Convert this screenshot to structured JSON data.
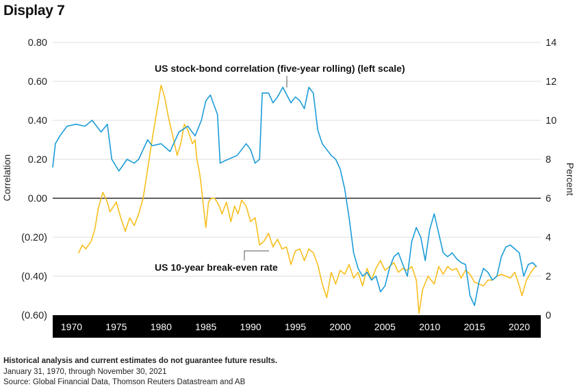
{
  "display_title": "Display 7",
  "footnotes": {
    "disclaimer": "Historical analysis and current estimates do not guarantee future results.",
    "date_range": "January 31, 1970, through November 30, 2021",
    "source": "Source: Global Financial Data, Thomson Reuters Datastream and AB"
  },
  "colors": {
    "correlation": "#1A9BD7",
    "breakeven": "#F7BE1C",
    "zero_line": "#000000",
    "axis_bar": "#000000"
  },
  "chart_data": {
    "type": "line",
    "title": "",
    "ylabel": "Correlation",
    "y2label": "Percent",
    "left_ylim": [
      -0.6,
      0.8
    ],
    "right_ylim": [
      0,
      14
    ],
    "left_tick_labels": [
      "0.80",
      "0.60",
      "0.40",
      "0.20",
      "0.00",
      "(0.20)",
      "(0.40)",
      "(0.60)"
    ],
    "right_tick_labels": [
      "14",
      "12",
      "10",
      "8",
      "6",
      "4",
      "2",
      "0"
    ],
    "x_tick_labels": [
      "1970",
      "1975",
      "1980",
      "1985",
      "1990",
      "1995",
      "2000",
      "2005",
      "2010",
      "2015",
      "2020"
    ],
    "grid": true,
    "annotations": {
      "correlation": "US stock-bond correlation (five-year rolling) (left scale)",
      "breakeven": "US 10-year break-even rate"
    },
    "series": [
      {
        "name": "US stock-bond correlation (five-year rolling) (left scale)",
        "axis": "left",
        "x": [
          1967.9,
          1968.2,
          1968.7,
          1969.5,
          1970.5,
          1971.5,
          1972.3,
          1973.3,
          1974.0,
          1974.5,
          1975.3,
          1976.2,
          1977.0,
          1977.5,
          1978.0,
          1978.5,
          1979.0,
          1980.0,
          1981.0,
          1982.0,
          1983.0,
          1983.8,
          1984.5,
          1985.0,
          1985.5,
          1986.3,
          1986.6,
          1987.0,
          1988.5,
          1989.5,
          1990.0,
          1990.5,
          1991.0,
          1991.3,
          1992.0,
          1992.5,
          1993.0,
          1993.6,
          1994.5,
          1995.0,
          1995.5,
          1996.0,
          1996.5,
          1997.0,
          1997.5,
          1998.0,
          1998.5,
          1999.0,
          1999.5,
          2000.0,
          2000.5,
          2001.0,
          2001.5,
          2002.0,
          2002.5,
          2003.0,
          2003.5,
          2004.0,
          2004.5,
          2005.0,
          2005.5,
          2006.0,
          2006.5,
          2007.0,
          2007.5,
          2008.0,
          2008.5,
          2009.0,
          2009.5,
          2010.0,
          2010.5,
          2011.0,
          2011.5,
          2012.0,
          2012.5,
          2013.0,
          2013.5,
          2014.0,
          2014.5,
          2015.0,
          2015.5,
          2016.0,
          2016.5,
          2017.0,
          2017.5,
          2018.0,
          2018.5,
          2019.0,
          2019.5,
          2020.0,
          2020.5,
          2021.0,
          2021.5,
          2021.9
        ],
        "values": [
          0.16,
          0.28,
          0.32,
          0.37,
          0.38,
          0.37,
          0.4,
          0.34,
          0.38,
          0.2,
          0.14,
          0.2,
          0.18,
          0.2,
          0.25,
          0.3,
          0.27,
          0.28,
          0.24,
          0.34,
          0.37,
          0.32,
          0.4,
          0.5,
          0.53,
          0.43,
          0.18,
          0.19,
          0.22,
          0.28,
          0.25,
          0.18,
          0.2,
          0.54,
          0.54,
          0.49,
          0.52,
          0.57,
          0.49,
          0.52,
          0.5,
          0.46,
          0.57,
          0.54,
          0.35,
          0.28,
          0.25,
          0.22,
          0.2,
          0.15,
          0.05,
          -0.1,
          -0.28,
          -0.36,
          -0.4,
          -0.38,
          -0.42,
          -0.4,
          -0.48,
          -0.45,
          -0.36,
          -0.3,
          -0.28,
          -0.34,
          -0.4,
          -0.22,
          -0.15,
          -0.2,
          -0.32,
          -0.16,
          -0.08,
          -0.18,
          -0.28,
          -0.3,
          -0.28,
          -0.31,
          -0.33,
          -0.34,
          -0.5,
          -0.55,
          -0.43,
          -0.36,
          -0.38,
          -0.42,
          -0.4,
          -0.3,
          -0.25,
          -0.24,
          -0.26,
          -0.28,
          -0.4,
          -0.34,
          -0.33,
          -0.35
        ]
      },
      {
        "name": "US 10-year break-even rate",
        "axis": "right",
        "x": [
          1970.8,
          1971.2,
          1971.6,
          1972.2,
          1972.6,
          1973.0,
          1973.5,
          1974.0,
          1974.3,
          1975.0,
          1975.5,
          1976.0,
          1976.5,
          1977.0,
          1977.5,
          1978.0,
          1978.5,
          1979.0,
          1979.5,
          1980.0,
          1980.4,
          1980.8,
          1981.2,
          1981.8,
          1982.2,
          1982.6,
          1983.0,
          1983.5,
          1983.8,
          1984.0,
          1984.3,
          1984.5,
          1984.8,
          1985.0,
          1985.3,
          1985.6,
          1986.0,
          1986.5,
          1986.8,
          1987.3,
          1987.8,
          1988.2,
          1988.6,
          1989.0,
          1989.5,
          1990.0,
          1990.5,
          1991.0,
          1991.5,
          1992.0,
          1992.5,
          1993.0,
          1993.5,
          1994.0,
          1994.5,
          1995.0,
          1995.5,
          1996.0,
          1996.5,
          1997.0,
          1997.5,
          1998.0,
          1998.5,
          1999.0,
          1999.5,
          2000.0,
          2000.5,
          2001.0,
          2001.5,
          2002.0,
          2002.5,
          2003.0,
          2003.5,
          2004.0,
          2004.5,
          2005.0,
          2005.5,
          2006.0,
          2006.5,
          2007.0,
          2007.5,
          2008.0,
          2008.5,
          2008.8,
          2009.2,
          2009.8,
          2010.5,
          2011.0,
          2011.5,
          2012.0,
          2012.5,
          2013.0,
          2013.5,
          2014.0,
          2014.5,
          2015.0,
          2015.5,
          2016.0,
          2016.5,
          2017.0,
          2017.5,
          2018.0,
          2018.5,
          2019.0,
          2019.5,
          2020.0,
          2020.3,
          2020.8,
          2021.3,
          2021.8
        ],
        "values": [
          3.2,
          3.6,
          3.4,
          3.8,
          4.4,
          5.5,
          6.3,
          5.8,
          5.3,
          5.8,
          5.0,
          4.3,
          5.0,
          4.6,
          5.2,
          6.0,
          7.5,
          9.0,
          10.4,
          11.8,
          11.2,
          10.2,
          9.4,
          8.2,
          8.8,
          9.8,
          9.5,
          8.8,
          9.0,
          8.0,
          7.3,
          6.6,
          5.3,
          4.5,
          5.8,
          6.0,
          6.0,
          5.6,
          5.2,
          5.8,
          4.8,
          5.6,
          5.2,
          5.9,
          5.6,
          4.8,
          5.0,
          3.6,
          3.8,
          4.2,
          3.5,
          3.9,
          3.4,
          3.5,
          2.6,
          3.3,
          3.4,
          2.8,
          3.4,
          3.2,
          2.6,
          1.6,
          0.9,
          2.2,
          1.6,
          2.3,
          2.1,
          2.6,
          1.9,
          2.2,
          1.5,
          2.4,
          1.8,
          2.4,
          2.8,
          2.3,
          2.5,
          2.7,
          2.2,
          2.4,
          2.3,
          2.5,
          1.8,
          0.1,
          1.3,
          2.0,
          1.6,
          2.5,
          2.1,
          2.5,
          2.3,
          2.4,
          1.9,
          2.3,
          2.1,
          1.7,
          1.6,
          1.5,
          1.8,
          1.8,
          2.0,
          2.1,
          2.0,
          1.9,
          2.2,
          1.5,
          1.0,
          1.8,
          2.2,
          2.5
        ]
      }
    ]
  }
}
